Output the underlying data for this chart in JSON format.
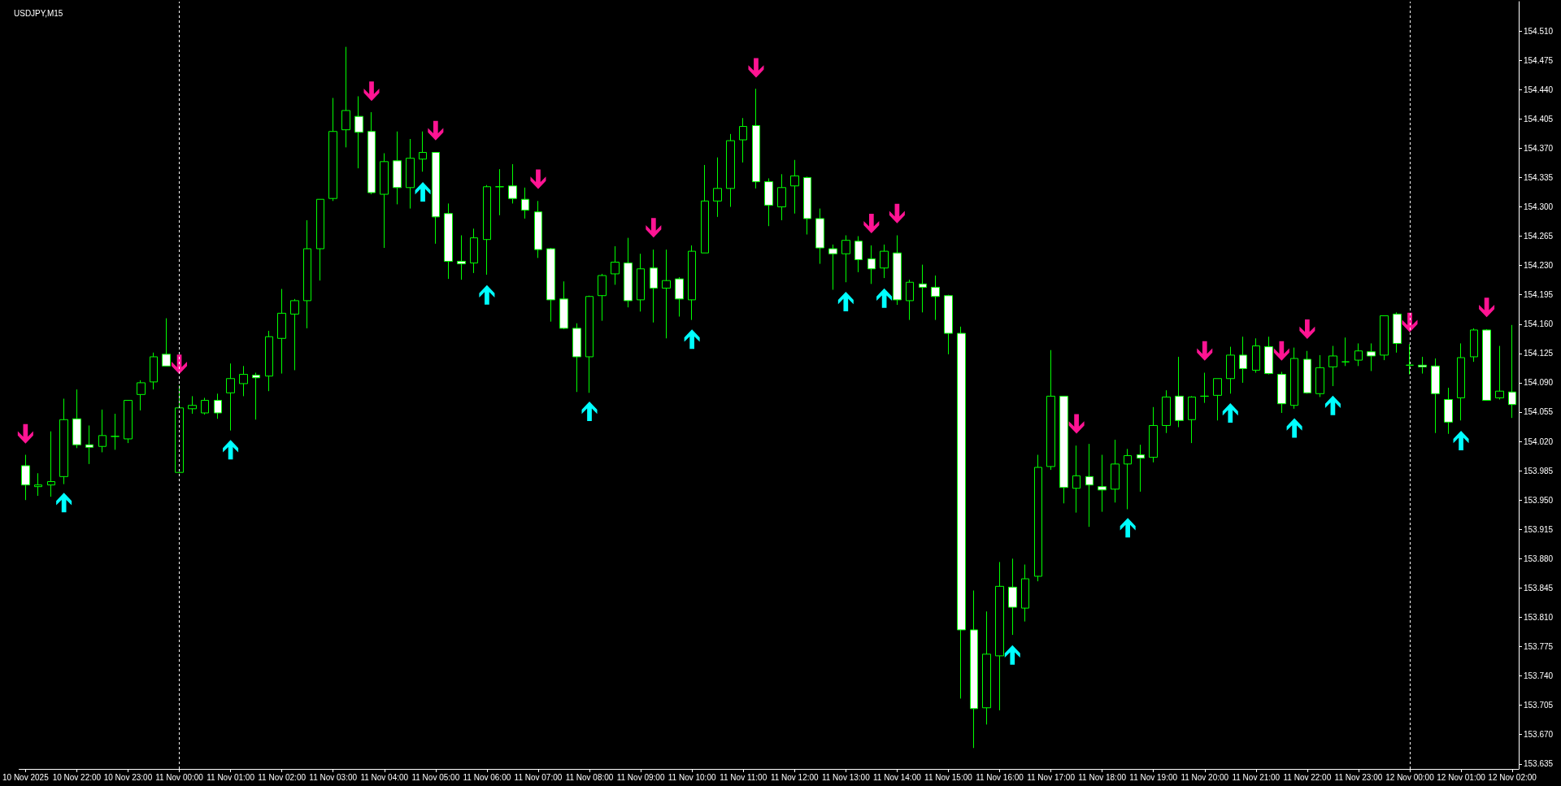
{
  "chart_data": {
    "type": "candlestick",
    "title": "USDJPY,M15",
    "categories": [
      "10 Nov 2025",
      null,
      null,
      null,
      "10 Nov 22:00",
      null,
      null,
      null,
      "10 Nov 23:00",
      null,
      null,
      null,
      "11 Nov 00:00",
      null,
      null,
      null,
      "11 Nov 01:00",
      null,
      null,
      null,
      "11 Nov 02:00",
      null,
      null,
      null,
      "11 Nov 03:00",
      null,
      null,
      null,
      "11 Nov 04:00",
      null,
      null,
      null,
      "11 Nov 05:00",
      null,
      null,
      null,
      "11 Nov 06:00",
      null,
      null,
      null,
      "11 Nov 07:00",
      null,
      null,
      null,
      "11 Nov 08:00",
      null,
      null,
      null,
      "11 Nov 09:00",
      null,
      null,
      null,
      "11 Nov 10:00",
      null,
      null,
      null,
      "11 Nov 11:00",
      null,
      null,
      null,
      "11 Nov 12:00",
      null,
      null,
      null,
      "11 Nov 13:00",
      null,
      null,
      null,
      "11 Nov 14:00",
      null,
      null,
      null,
      "11 Nov 15:00",
      null,
      null,
      null,
      "11 Nov 16:00",
      null,
      null,
      null,
      "11 Nov 17:00",
      null,
      null,
      null,
      "11 Nov 18:00",
      null,
      null,
      null,
      "11 Nov 19:00",
      null,
      null,
      null,
      "11 Nov 20:00",
      null,
      null,
      null,
      "11 Nov 21:00",
      null,
      null,
      null,
      "11 Nov 22:00",
      null,
      null,
      null,
      "11 Nov 23:00",
      null,
      null,
      null,
      "12 Nov 00:00",
      null,
      null,
      null,
      "12 Nov 01:00",
      null,
      null,
      null,
      "12 Nov 02:00"
    ],
    "series": [
      {
        "color": "#00ff00",
        "colors": [
          "#ffffff",
          "#000000",
          "#000000",
          "#000000",
          "#ffffff",
          "#ffffff",
          "#000000",
          "#00ff00",
          "#000000",
          "#000000",
          "#000000",
          "#ffffff",
          "#000000",
          "#000000",
          "#000000",
          "#ffffff",
          "#000000",
          "#000000",
          "#ffffff",
          "#000000",
          "#000000",
          "#000000",
          "#000000",
          "#000000",
          "#000000",
          "#000000",
          "#ffffff",
          "#ffffff",
          "#000000",
          "#ffffff",
          "#000000",
          "#000000",
          "#ffffff",
          "#ffffff",
          "#ffffff",
          "#000000",
          "#000000",
          "#00ff00",
          "#ffffff",
          "#ffffff",
          "#ffffff",
          "#ffffff",
          "#ffffff",
          "#ffffff",
          "#000000",
          "#000000",
          "#000000",
          "#ffffff",
          "#000000",
          "#ffffff",
          "#000000",
          "#ffffff",
          "#000000",
          "#000000",
          "#000000",
          "#000000",
          "#000000",
          "#ffffff",
          "#ffffff",
          "#000000",
          "#000000",
          "#ffffff",
          "#ffffff",
          "#ffffff",
          "#000000",
          "#ffffff",
          "#ffffff",
          "#000000",
          "#ffffff",
          "#000000",
          "#ffffff",
          "#ffffff",
          "#ffffff",
          "#ffffff",
          "#ffffff",
          "#000000",
          "#000000",
          "#ffffff",
          "#000000",
          "#000000",
          "#000000",
          "#ffffff",
          "#000000",
          "#ffffff",
          "#ffffff",
          "#000000",
          "#000000",
          "#ffffff",
          "#000000",
          "#000000",
          "#ffffff",
          "#000000",
          "#00ff00",
          "#000000",
          "#000000",
          "#ffffff",
          "#000000",
          "#ffffff",
          "#ffffff",
          "#000000",
          "#ffffff",
          "#000000",
          "#000000",
          "#00ff00",
          "#000000",
          "#ffffff",
          "#000000",
          "#ffffff",
          "#00ff00",
          "#ffffff",
          "#ffffff",
          "#ffffff",
          "#000000",
          "#000000",
          "#ffffff",
          "#000000",
          "#ffffff"
        ],
        "ohlc": [
          [
            153.991,
            154.004,
            153.95,
            153.968
          ],
          [
            153.966,
            153.982,
            153.955,
            153.968
          ],
          [
            153.968,
            154.032,
            153.954,
            153.972
          ],
          [
            153.978,
            154.071,
            153.969,
            154.046
          ],
          [
            154.047,
            154.082,
            154.012,
            154.016
          ],
          [
            154.016,
            154.039,
            153.993,
            154.013
          ],
          [
            154.014,
            154.058,
            154.007,
            154.027
          ],
          [
            154.026,
            154.053,
            154.01,
            154.026
          ],
          [
            154.023,
            154.069,
            154.018,
            154.069
          ],
          [
            154.076,
            154.093,
            154.057,
            154.09
          ],
          [
            154.091,
            154.126,
            154.082,
            154.121
          ],
          [
            154.124,
            154.167,
            154.11,
            154.11
          ],
          [
            153.983,
            154.087,
            153.982,
            154.06
          ],
          [
            154.059,
            154.074,
            154.053,
            154.063
          ],
          [
            154.054,
            154.072,
            154.052,
            154.069
          ],
          [
            154.069,
            154.077,
            154.047,
            154.054
          ],
          [
            154.078,
            154.113,
            154.033,
            154.095
          ],
          [
            154.089,
            154.11,
            154.074,
            154.1
          ],
          [
            154.099,
            154.102,
            154.046,
            154.096
          ],
          [
            154.098,
            154.152,
            154.08,
            154.145
          ],
          [
            154.143,
            154.202,
            154.101,
            154.173
          ],
          [
            154.172,
            154.19,
            154.105,
            154.188
          ],
          [
            154.188,
            154.284,
            154.155,
            154.25
          ],
          [
            154.25,
            154.309,
            154.212,
            154.309
          ],
          [
            154.31,
            154.43,
            154.307,
            154.39
          ],
          [
            154.392,
            154.491,
            154.371,
            154.415
          ],
          [
            154.408,
            154.432,
            154.346,
            154.389
          ],
          [
            154.39,
            154.413,
            154.315,
            154.317
          ],
          [
            154.315,
            154.364,
            154.251,
            154.354
          ],
          [
            154.355,
            154.39,
            154.303,
            154.323
          ],
          [
            154.323,
            154.381,
            154.298,
            154.358
          ],
          [
            154.357,
            154.39,
            154.342,
            154.365
          ],
          [
            154.365,
            154.365,
            154.256,
            154.288
          ],
          [
            154.292,
            154.304,
            154.214,
            154.235
          ],
          [
            154.235,
            154.266,
            154.213,
            154.232
          ],
          [
            154.233,
            154.274,
            154.221,
            154.263
          ],
          [
            154.261,
            154.326,
            154.219,
            154.324
          ],
          [
            154.324,
            154.345,
            154.29,
            154.324
          ],
          [
            154.325,
            154.351,
            154.304,
            154.31
          ],
          [
            154.309,
            154.323,
            154.286,
            154.296
          ],
          [
            154.294,
            154.307,
            154.239,
            154.249
          ],
          [
            154.25,
            154.251,
            154.163,
            154.189
          ],
          [
            154.19,
            154.211,
            154.154,
            154.155
          ],
          [
            154.155,
            154.161,
            154.079,
            154.121
          ],
          [
            154.121,
            154.194,
            154.078,
            154.193
          ],
          [
            154.194,
            154.22,
            154.164,
            154.218
          ],
          [
            154.22,
            154.253,
            154.207,
            154.234
          ],
          [
            154.233,
            154.263,
            154.18,
            154.188
          ],
          [
            154.189,
            154.244,
            154.175,
            154.226
          ],
          [
            154.227,
            154.249,
            154.162,
            154.203
          ],
          [
            154.203,
            154.249,
            154.143,
            154.212
          ],
          [
            154.214,
            154.216,
            154.169,
            154.19
          ],
          [
            154.189,
            154.254,
            154.165,
            154.247
          ],
          [
            154.245,
            154.35,
            154.245,
            154.307
          ],
          [
            154.307,
            154.359,
            154.288,
            154.322
          ],
          [
            154.322,
            154.387,
            154.3,
            154.379
          ],
          [
            154.38,
            154.406,
            154.353,
            154.396
          ],
          [
            154.397,
            154.441,
            154.322,
            154.33
          ],
          [
            154.33,
            154.334,
            154.277,
            154.302
          ],
          [
            154.3,
            154.339,
            154.284,
            154.323
          ],
          [
            154.325,
            154.356,
            154.292,
            154.337
          ],
          [
            154.335,
            154.336,
            154.267,
            154.286
          ],
          [
            154.286,
            154.298,
            154.232,
            154.251
          ],
          [
            154.25,
            154.255,
            154.201,
            154.244
          ],
          [
            154.244,
            154.266,
            154.21,
            154.26
          ],
          [
            154.259,
            154.265,
            154.222,
            154.237
          ],
          [
            154.238,
            154.254,
            154.208,
            154.226
          ],
          [
            154.227,
            154.255,
            154.215,
            154.247
          ],
          [
            154.245,
            154.266,
            154.183,
            154.189
          ],
          [
            154.188,
            154.213,
            154.165,
            154.21
          ],
          [
            154.208,
            154.231,
            154.174,
            154.204
          ],
          [
            154.204,
            154.218,
            154.165,
            154.193
          ],
          [
            154.194,
            154.195,
            154.124,
            154.149
          ],
          [
            154.149,
            154.157,
            153.713,
            153.795
          ],
          [
            153.795,
            153.842,
            153.654,
            153.701
          ],
          [
            153.702,
            153.817,
            153.682,
            153.766
          ],
          [
            153.764,
            153.876,
            153.699,
            153.847
          ],
          [
            153.846,
            153.88,
            153.789,
            153.822
          ],
          [
            153.821,
            153.873,
            153.805,
            153.856
          ],
          [
            153.859,
            154.004,
            153.853,
            153.989
          ],
          [
            153.99,
            154.129,
            153.986,
            154.074
          ],
          [
            154.074,
            154.074,
            153.946,
            153.965
          ],
          [
            153.964,
            154.015,
            153.935,
            153.979
          ],
          [
            153.978,
            154.017,
            153.918,
            153.968
          ],
          [
            153.966,
            154.004,
            153.936,
            153.962
          ],
          [
            153.963,
            154.022,
            153.947,
            153.993
          ],
          [
            153.993,
            154.011,
            153.939,
            154.003
          ],
          [
            154.004,
            154.016,
            153.96,
            154.0
          ],
          [
            154.001,
            154.061,
            153.995,
            154.039
          ],
          [
            154.039,
            154.081,
            154.03,
            154.073
          ],
          [
            154.074,
            154.121,
            154.037,
            154.045
          ],
          [
            154.046,
            154.074,
            154.018,
            154.073
          ],
          [
            154.074,
            154.102,
            154.066,
            154.074
          ],
          [
            154.075,
            154.095,
            154.045,
            154.095
          ],
          [
            154.095,
            154.133,
            154.077,
            154.123
          ],
          [
            154.123,
            154.145,
            154.09,
            154.107
          ],
          [
            154.105,
            154.143,
            154.102,
            154.134
          ],
          [
            154.133,
            154.145,
            154.1,
            154.101
          ],
          [
            154.1,
            154.103,
            154.054,
            154.065
          ],
          [
            154.063,
            154.132,
            154.059,
            154.119
          ],
          [
            154.118,
            154.128,
            154.077,
            154.078
          ],
          [
            154.077,
            154.123,
            154.073,
            154.108
          ],
          [
            154.109,
            154.134,
            154.086,
            154.122
          ],
          [
            154.115,
            154.144,
            154.11,
            154.115
          ],
          [
            154.117,
            154.137,
            154.11,
            154.128
          ],
          [
            154.127,
            154.137,
            154.104,
            154.122
          ],
          [
            154.123,
            154.17,
            154.117,
            154.17
          ],
          [
            154.172,
            154.174,
            154.126,
            154.137
          ],
          [
            154.111,
            154.136,
            154.1,
            154.111
          ],
          [
            154.111,
            154.121,
            154.101,
            154.109
          ],
          [
            154.11,
            154.119,
            154.03,
            154.077
          ],
          [
            154.07,
            154.084,
            154.029,
            154.043
          ],
          [
            154.072,
            154.137,
            154.045,
            154.12
          ],
          [
            154.121,
            154.155,
            154.115,
            154.153
          ],
          [
            154.153,
            154.154,
            154.069,
            154.069
          ],
          [
            154.072,
            154.134,
            154.07,
            154.08
          ],
          [
            154.079,
            154.159,
            154.048,
            154.064
          ]
        ]
      },
      {
        "type": "scatter",
        "color": "#00ffff",
        "values": [
          null,
          null,
          null,
          153.947,
          null,
          null,
          null,
          null,
          null,
          null,
          null,
          null,
          null,
          null,
          null,
          null,
          154.01,
          null,
          null,
          null,
          null,
          null,
          null,
          null,
          null,
          null,
          null,
          null,
          null,
          null,
          null,
          154.318,
          null,
          null,
          null,
          null,
          154.195,
          null,
          null,
          null,
          null,
          null,
          null,
          null,
          154.056,
          null,
          null,
          null,
          null,
          null,
          null,
          null,
          154.142,
          null,
          null,
          null,
          null,
          null,
          null,
          null,
          null,
          null,
          null,
          null,
          154.187,
          null,
          null,
          154.191,
          null,
          null,
          null,
          null,
          null,
          null,
          null,
          null,
          null,
          153.765,
          null,
          null,
          null,
          null,
          null,
          null,
          null,
          null,
          153.917,
          null,
          null,
          null,
          null,
          null,
          null,
          null,
          154.054,
          null,
          null,
          null,
          null,
          154.036,
          null,
          null,
          154.063,
          null,
          null,
          null,
          null,
          null,
          null,
          null,
          null,
          null,
          154.021,
          null,
          null,
          null,
          null
        ]
      },
      {
        "type": "scatter",
        "color": "#ff1493",
        "values": [
          154.029,
          null,
          null,
          null,
          null,
          null,
          null,
          null,
          null,
          null,
          null,
          null,
          154.112,
          null,
          null,
          null,
          null,
          null,
          null,
          null,
          null,
          null,
          null,
          null,
          null,
          null,
          null,
          154.438,
          null,
          null,
          null,
          null,
          154.391,
          null,
          null,
          null,
          null,
          null,
          null,
          null,
          154.333,
          null,
          null,
          null,
          null,
          null,
          null,
          null,
          null,
          154.275,
          null,
          null,
          null,
          null,
          null,
          null,
          null,
          154.466,
          null,
          null,
          null,
          null,
          null,
          null,
          null,
          null,
          154.28,
          null,
          154.292,
          null,
          null,
          null,
          null,
          null,
          null,
          null,
          null,
          null,
          null,
          null,
          null,
          null,
          154.041,
          null,
          null,
          null,
          null,
          null,
          null,
          null,
          null,
          null,
          154.128,
          null,
          null,
          null,
          null,
          null,
          154.128,
          null,
          154.154,
          null,
          null,
          null,
          null,
          null,
          null,
          null,
          154.162,
          null,
          null,
          null,
          null,
          null,
          154.18,
          null,
          null
        ]
      }
    ],
    "ylim": [
      153.629,
      154.545
    ],
    "yticks": [
      {
        "value": 154.51,
        "label": "154.510"
      },
      154.475,
      {
        "value": 154.44,
        "label": "154.440"
      },
      154.405,
      {
        "value": 154.37,
        "label": "154.370"
      },
      154.335,
      {
        "value": 154.3,
        "label": "154.300"
      },
      154.265,
      {
        "value": 154.23,
        "label": "154.230"
      },
      154.195,
      {
        "value": 154.16,
        "label": "154.160"
      },
      154.125,
      {
        "value": 154.09,
        "label": "154.090"
      },
      154.055,
      {
        "value": 154.02,
        "label": "154.020"
      },
      153.985,
      {
        "value": 153.95,
        "label": "153.950"
      },
      153.915,
      {
        "value": 153.88,
        "label": "153.880"
      },
      153.845,
      {
        "value": 153.81,
        "label": "153.810"
      },
      153.775,
      {
        "value": 153.74,
        "label": "153.740"
      },
      153.705,
      {
        "value": 153.67,
        "label": "153.670"
      },
      153.635
    ],
    "ref_lines": [
      {
        "axis": "x",
        "value": "11 Nov 00:00",
        "color": "#ffffff",
        "line_style": "dashed"
      },
      {
        "axis": "x",
        "value": "12 Nov 00:00",
        "color": "#ffffff",
        "line_style": "dashed"
      }
    ]
  }
}
